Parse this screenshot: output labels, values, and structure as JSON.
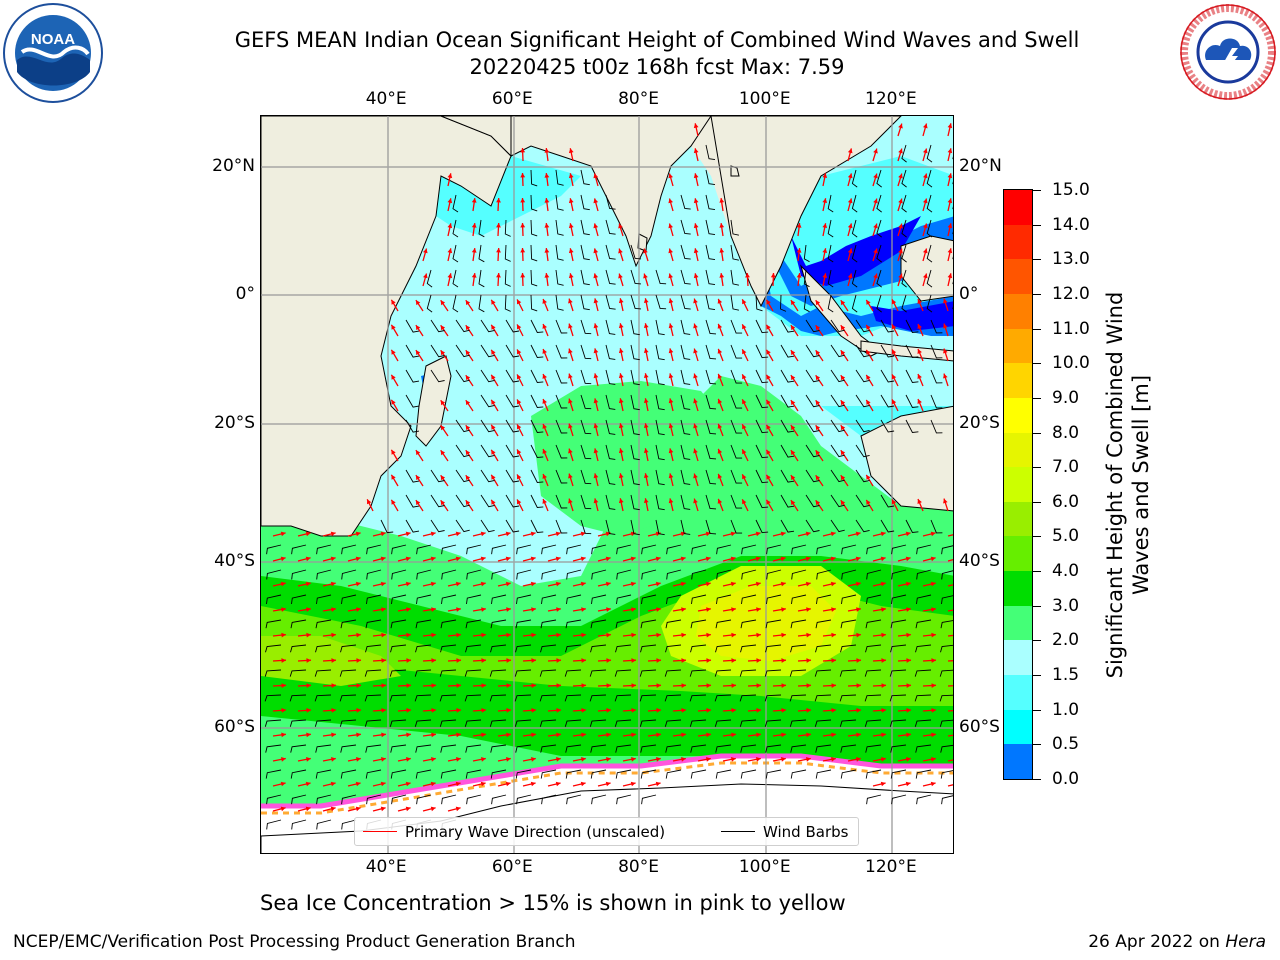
{
  "title_line1": "GEFS MEAN Indian Ocean Significant Height of Combined Wind Waves and Swell",
  "title_line2": "20220425 t00z 168h fcst   Max: 7.59",
  "map": {
    "lon_ticks": [
      "40°E",
      "60°E",
      "80°E",
      "100°E",
      "120°E"
    ],
    "lon_values": [
      40,
      60,
      80,
      100,
      120
    ],
    "lat_ticks": [
      "20°N",
      "0°",
      "20°S",
      "40°S",
      "60°S"
    ],
    "lat_values": [
      20,
      0,
      -20,
      -40,
      -60
    ],
    "lon_range": [
      20,
      130
    ],
    "lat_range": [
      28,
      -72
    ],
    "land_color": "#efeedf",
    "grid": true
  },
  "legend": {
    "wave_label": "Primary Wave Direction (unscaled)",
    "barb_label": "Wind Barbs",
    "wave_color": "#ff0000",
    "barb_color": "#000000"
  },
  "colorbar": {
    "title": "Significant Height of Combined Wind Waves and Swell [m]",
    "labels": [
      "15.0",
      "14.0",
      "13.0",
      "12.0",
      "11.0",
      "10.0",
      "9.0",
      "8.0",
      "7.0",
      "6.0",
      "5.0",
      "4.0",
      "3.0",
      "2.0",
      "1.5",
      "1.0",
      "0.5",
      "0.0"
    ],
    "colors": [
      "#ff0000",
      "#ff2a00",
      "#ff5500",
      "#ff8000",
      "#ffaa00",
      "#ffd500",
      "#ffff00",
      "#e6f500",
      "#ccff00",
      "#99ee00",
      "#66ee00",
      "#00dd00",
      "#44ff77",
      "#aaffff",
      "#55ffff",
      "#00ffff",
      "#0077ff",
      "#0000ff"
    ]
  },
  "sea_ice_note": "Sea Ice Concentration > 15% is shown in pink to yellow",
  "footer": {
    "left": "NCEP/EMC/Verification Post Processing Product Generation Branch",
    "date": "26 Apr 2022 on ",
    "host": "Hera"
  },
  "logos": {
    "noaa_text": "NOAA",
    "nws_text": "NATIONAL WEATHER SERVICE"
  }
}
